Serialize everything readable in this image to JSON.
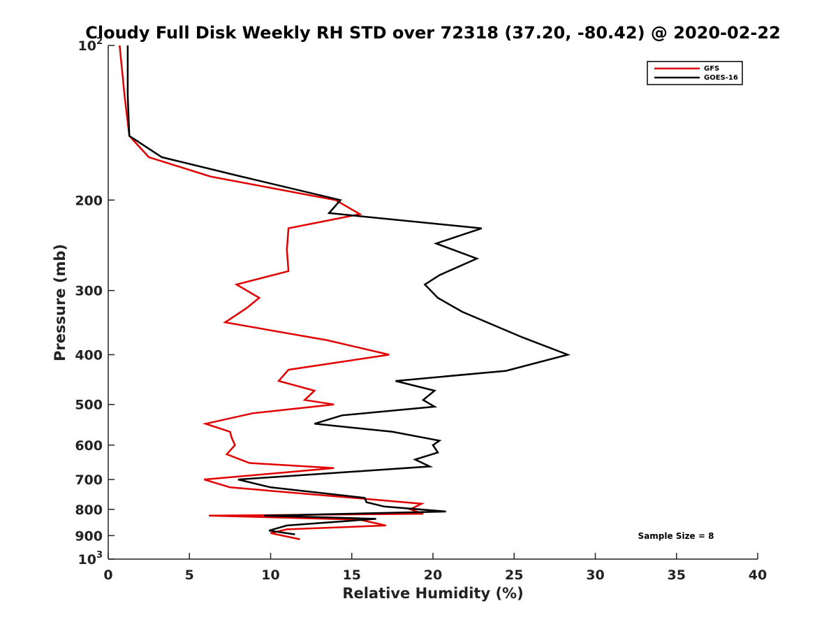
{
  "chart_data": {
    "type": "line",
    "title": "Cloudy Full Disk Weekly RH STD over 72318 (37.20, -80.42) @ 2020-02-22",
    "xlabel": "Relative Humidity (%)",
    "ylabel": "Pressure (mb)",
    "xlim": [
      0,
      40
    ],
    "ylim": [
      100,
      1000
    ],
    "yscale": "log",
    "y_reversed": true,
    "legend_position": "top-right",
    "x_ticks": [
      {
        "value": 0,
        "label": "0"
      },
      {
        "value": 5,
        "label": "5"
      },
      {
        "value": 10,
        "label": "10"
      },
      {
        "value": 15,
        "label": "15"
      },
      {
        "value": 20,
        "label": "20"
      },
      {
        "value": 25,
        "label": "25"
      },
      {
        "value": 30,
        "label": "30"
      },
      {
        "value": 35,
        "label": "35"
      },
      {
        "value": 40,
        "label": "40"
      }
    ],
    "y_ticks": [
      {
        "value": 100,
        "base": "10",
        "exp": "2"
      },
      {
        "value": 200,
        "label": "200"
      },
      {
        "value": 300,
        "label": "300"
      },
      {
        "value": 400,
        "label": "400"
      },
      {
        "value": 500,
        "label": "500"
      },
      {
        "value": 600,
        "label": "600"
      },
      {
        "value": 700,
        "label": "700"
      },
      {
        "value": 800,
        "label": "800"
      },
      {
        "value": 900,
        "label": "900"
      },
      {
        "value": 1000,
        "base": "10",
        "exp": "3"
      }
    ],
    "annotation": "Sample Size = 8",
    "series": [
      {
        "name": "GFS",
        "color": "#e00000",
        "points": [
          [
            0.7,
            100
          ],
          [
            1.0,
            125
          ],
          [
            1.3,
            150
          ],
          [
            2.5,
            165
          ],
          [
            6.3,
            180
          ],
          [
            14.0,
            200
          ],
          [
            15.5,
            213
          ],
          [
            11.1,
            227
          ],
          [
            11.0,
            250
          ],
          [
            11.1,
            275
          ],
          [
            7.9,
            292
          ],
          [
            9.3,
            310
          ],
          [
            8.5,
            325
          ],
          [
            7.2,
            346
          ],
          [
            13.5,
            375
          ],
          [
            17.3,
            400
          ],
          [
            11.1,
            428
          ],
          [
            10.5,
            450
          ],
          [
            12.7,
            470
          ],
          [
            12.1,
            490
          ],
          [
            13.9,
            500
          ],
          [
            8.9,
            520
          ],
          [
            6.0,
            545
          ],
          [
            7.5,
            565
          ],
          [
            7.6,
            580
          ],
          [
            7.8,
            600
          ],
          [
            7.3,
            625
          ],
          [
            8.7,
            650
          ],
          [
            13.9,
            665
          ],
          [
            5.9,
            700
          ],
          [
            7.5,
            725
          ],
          [
            19.3,
            780
          ],
          [
            18.6,
            800
          ],
          [
            19.4,
            816
          ],
          [
            6.2,
            823
          ],
          [
            15.5,
            838
          ],
          [
            17.1,
            860
          ],
          [
            11.0,
            875
          ],
          [
            10.0,
            890
          ],
          [
            11.8,
            915
          ]
        ]
      },
      {
        "name": "GOES-16",
        "color": "#000000",
        "points": [
          [
            1.2,
            100
          ],
          [
            1.2,
            125
          ],
          [
            1.3,
            150
          ],
          [
            3.3,
            165
          ],
          [
            8.2,
            180
          ],
          [
            14.3,
            200
          ],
          [
            13.6,
            212
          ],
          [
            23.0,
            227
          ],
          [
            20.2,
            243
          ],
          [
            22.7,
            260
          ],
          [
            20.4,
            280
          ],
          [
            19.5,
            292
          ],
          [
            20.3,
            310
          ],
          [
            21.8,
            330
          ],
          [
            25.5,
            370
          ],
          [
            28.3,
            400
          ],
          [
            24.5,
            430
          ],
          [
            17.7,
            450
          ],
          [
            20.1,
            470
          ],
          [
            19.4,
            490
          ],
          [
            20.1,
            505
          ],
          [
            14.4,
            525
          ],
          [
            12.7,
            545
          ],
          [
            17.5,
            565
          ],
          [
            20.4,
            588
          ],
          [
            20.0,
            600
          ],
          [
            20.3,
            620
          ],
          [
            18.9,
            640
          ],
          [
            19.8,
            660
          ],
          [
            8.0,
            700
          ],
          [
            10.0,
            725
          ],
          [
            15.8,
            760
          ],
          [
            15.9,
            775
          ],
          [
            17.0,
            790
          ],
          [
            20.8,
            808
          ],
          [
            9.6,
            823
          ],
          [
            16.5,
            835
          ],
          [
            11.0,
            860
          ],
          [
            9.9,
            880
          ],
          [
            11.5,
            895
          ]
        ]
      }
    ]
  }
}
